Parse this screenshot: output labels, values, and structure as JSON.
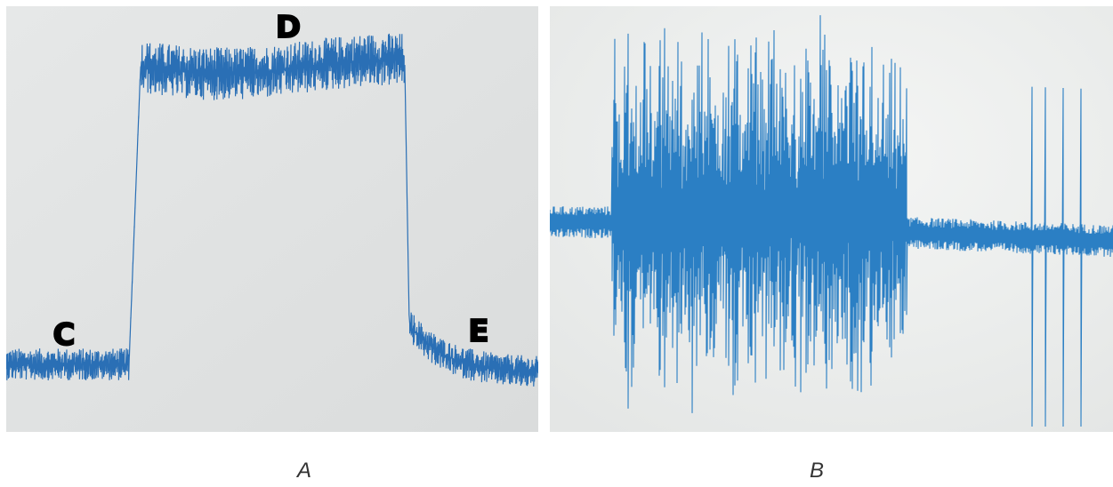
{
  "panels": [
    {
      "label": "A",
      "annotations": [
        "C",
        "D",
        "E"
      ]
    },
    {
      "label": "B"
    }
  ]
}
